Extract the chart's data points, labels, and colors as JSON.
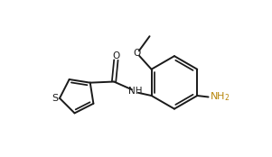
{
  "bg_color": "#ffffff",
  "line_color": "#1a1a1a",
  "text_color": "#1a1a1a",
  "o_color": "#1a1a1a",
  "s_color": "#1a1a1a",
  "nh2_color": "#b8860b",
  "line_width": 1.4,
  "font_size": 7.5,
  "xlim": [
    0,
    10.2
  ],
  "ylim": [
    0,
    5.9
  ]
}
